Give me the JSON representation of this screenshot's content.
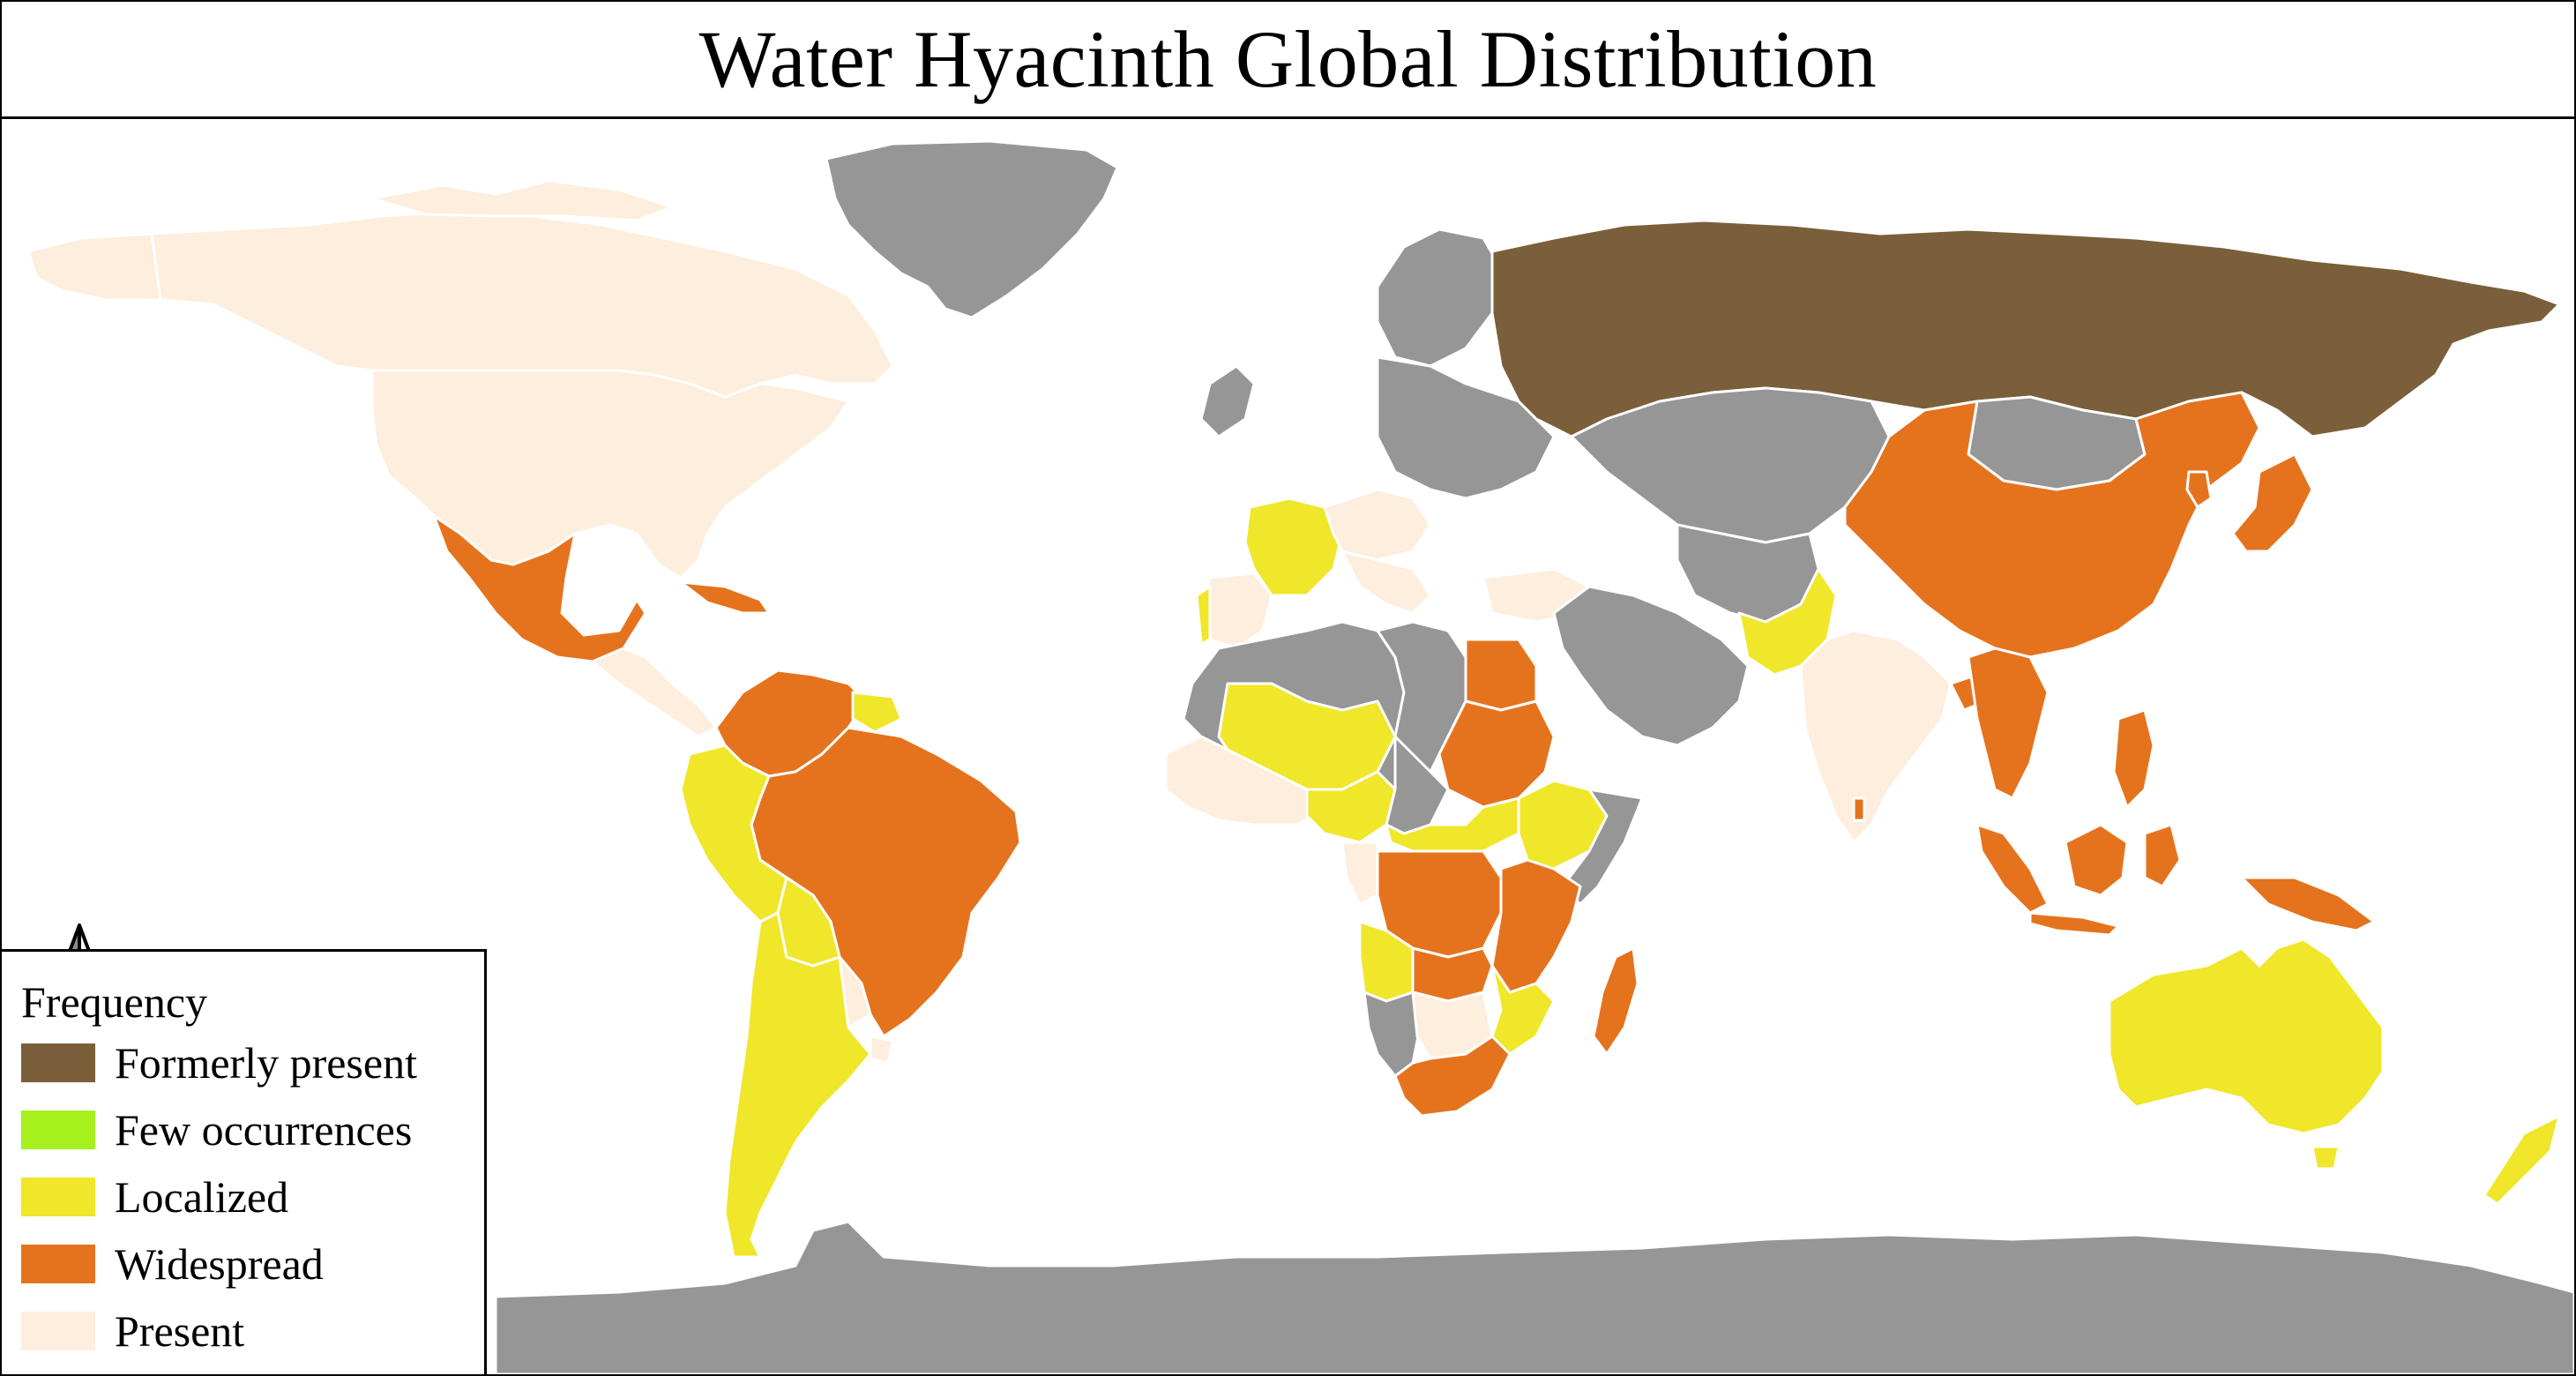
{
  "map": {
    "title": "Water Hyacinth Global Distribution",
    "colors": {
      "ocean": "#ffffff",
      "no_data": "#969696",
      "formerly_present": "#7a5f3a",
      "few_occurrences": "#a6f01e",
      "localized": "#f0e62a",
      "widespread": "#e5731e",
      "present": "#fdeedd",
      "border": "#ffffff"
    },
    "north_arrow_icon": "north-arrow-icon",
    "legend": {
      "title": "Frequency",
      "items": [
        {
          "label": "Formerly present",
          "color": "#7a5f3a"
        },
        {
          "label": "Few occurrences",
          "color": "#a6f01e"
        },
        {
          "label": "Localized",
          "color": "#f0e62a"
        },
        {
          "label": "Widespread",
          "color": "#e5731e"
        },
        {
          "label": "Present",
          "color": "#fdeedd"
        }
      ]
    }
  }
}
